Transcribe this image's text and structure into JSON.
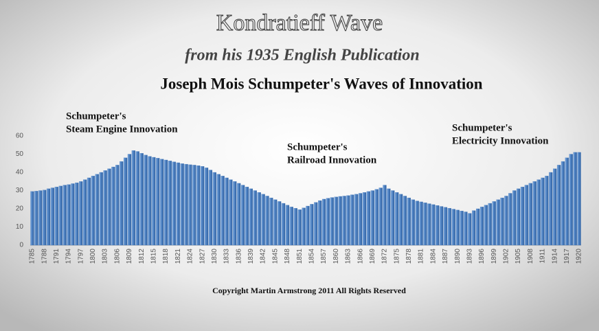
{
  "chart_data": {
    "type": "bar",
    "title": "Kondratieff Wave",
    "subtitle": "from his 1935 English Publication",
    "subtitle2": "Joseph Mois Schumpeter's Waves of Innovation",
    "annotations": [
      [
        "Schumpeter's",
        "Steam Engine Innovation"
      ],
      [
        "Schumpeter's",
        "Railroad Innovation"
      ],
      [
        "Schumpeter's",
        "Electricity Innovation"
      ]
    ],
    "footer": "Copyright Martin Armstrong 2011 All Rights Reserved",
    "categories": [
      "1785",
      null,
      null,
      "1788",
      null,
      null,
      "1791",
      null,
      null,
      "1794",
      null,
      null,
      "1797",
      null,
      null,
      "1800",
      null,
      null,
      "1803",
      null,
      null,
      "1806",
      null,
      null,
      "1809",
      null,
      null,
      "1812",
      null,
      null,
      "1815",
      null,
      null,
      "1818",
      null,
      null,
      "1821",
      null,
      null,
      "1824",
      null,
      null,
      "1827",
      null,
      null,
      "1830",
      null,
      null,
      "1833",
      null,
      null,
      "1836",
      null,
      null,
      "1839",
      null,
      null,
      "1842",
      null,
      null,
      "1845",
      null,
      null,
      "1848",
      null,
      null,
      "1851",
      null,
      null,
      "1854",
      null,
      null,
      "1857",
      null,
      null,
      "1860",
      null,
      null,
      "1863",
      null,
      null,
      "1866",
      null,
      null,
      "1869",
      null,
      null,
      "1872",
      null,
      null,
      "1875",
      null,
      null,
      "1878",
      null,
      null,
      "1881",
      null,
      null,
      "1884",
      null,
      null,
      "1887",
      null,
      null,
      "1890",
      null,
      null,
      "1893",
      null,
      null,
      "1896",
      null,
      null,
      "1899",
      null,
      null,
      "1902",
      null,
      null,
      "1905",
      null,
      null,
      "1908",
      null,
      null,
      "1911",
      null,
      null,
      "1914",
      null,
      null,
      "1917",
      null,
      null,
      "1920"
    ],
    "values": [
      29.5,
      29.7,
      30,
      30.3,
      31,
      31.5,
      32,
      32.5,
      33,
      33.3,
      33.8,
      34.3,
      35,
      36,
      37,
      38,
      39,
      40,
      41,
      42,
      43,
      44,
      46,
      48,
      50,
      52,
      51.5,
      50.5,
      49.5,
      48.8,
      48.3,
      47.8,
      47.3,
      46.8,
      46.3,
      45.8,
      45.3,
      44.8,
      44.5,
      44.2,
      44,
      43.7,
      43.3,
      42.5,
      41.3,
      40,
      39,
      38,
      37,
      36,
      35,
      34,
      33,
      32,
      31,
      30,
      29,
      28,
      27,
      26,
      25,
      24,
      23,
      22,
      21,
      20.3,
      19.5,
      20.5,
      21.5,
      22.5,
      23.5,
      24.5,
      25.3,
      25.8,
      26.2,
      26.5,
      26.8,
      27,
      27.3,
      27.7,
      28,
      28.5,
      29,
      29.5,
      30,
      30.7,
      31.5,
      33,
      31,
      30,
      29,
      28,
      27,
      26,
      25,
      24.3,
      23.8,
      23.3,
      22.8,
      22.3,
      21.8,
      21.3,
      20.8,
      20.3,
      19.8,
      19.3,
      18.8,
      18.3,
      17.5,
      19,
      20,
      21,
      22,
      23,
      24,
      25,
      26,
      27,
      28.5,
      30,
      31,
      32,
      33,
      34,
      35,
      36,
      37,
      38,
      40,
      42,
      44,
      46,
      48,
      50,
      51,
      51
    ],
    "color": "#4a7ebf",
    "ylim": [
      0,
      60
    ],
    "yticks": [
      0,
      10,
      20,
      30,
      40,
      50,
      60
    ],
    "grid": false
  }
}
